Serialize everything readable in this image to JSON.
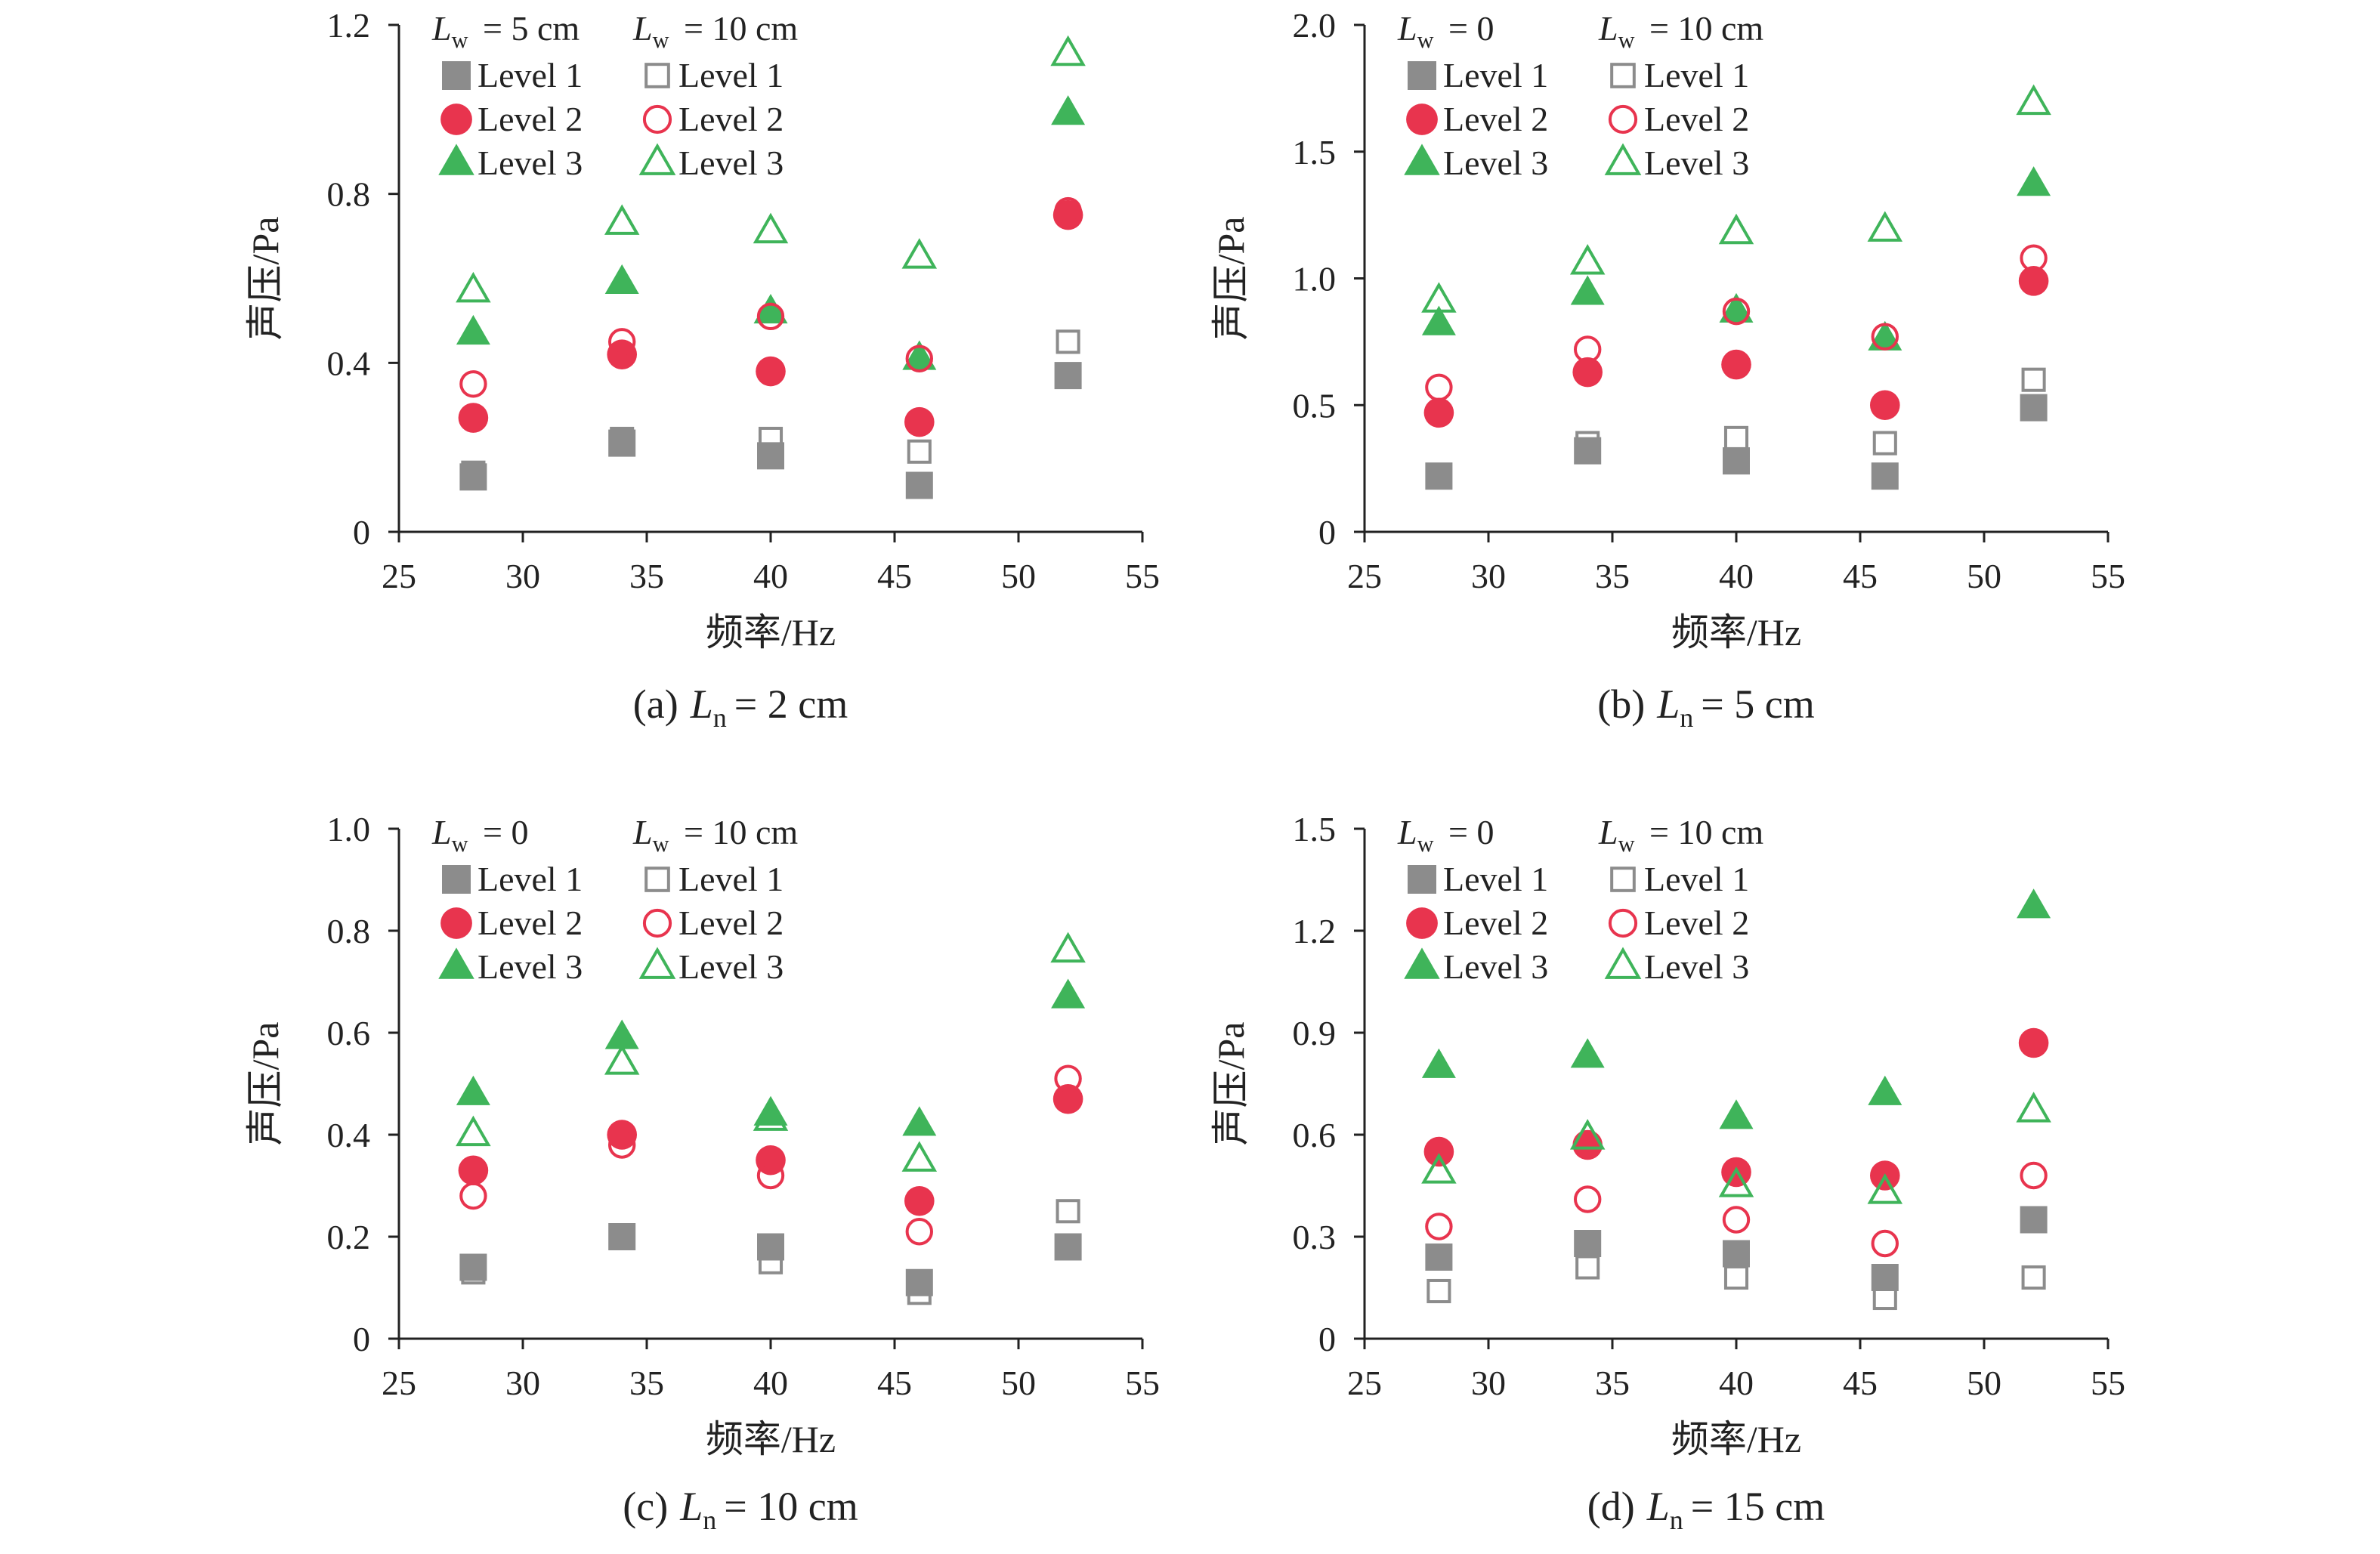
{
  "colors": {
    "level1": "#8c8c8c",
    "level1_hollow": "#8c8c8c",
    "level2": "#e8344e",
    "level3": "#3fb45a",
    "axis": "#222222"
  },
  "chart_data": [
    {
      "type": "scatter",
      "caption": "(a) L_n = 2 cm",
      "caption_parts": {
        "prefix": "(a)",
        "var": "L",
        "sub": "n",
        "rest": "= 2 cm"
      },
      "xlabel": "频率/Hz",
      "ylabel": "声压/Pa",
      "xlim": [
        25,
        55
      ],
      "xticks": [
        25,
        30,
        35,
        40,
        45,
        50,
        55
      ],
      "ylim": [
        0,
        1.2
      ],
      "yticks": [
        "0",
        "0.4",
        "0.8",
        "1.2"
      ],
      "grid": false,
      "legend_position": "top-left",
      "legend_groups": [
        {
          "var": "L",
          "sub": "w",
          "rest": "= 5 cm",
          "filled": true
        },
        {
          "var": "L",
          "sub": "w",
          "rest": "= 10 cm",
          "filled": false
        }
      ],
      "x": [
        28,
        34,
        40,
        46,
        52
      ],
      "series": [
        {
          "name": "Level 1",
          "marker": "square",
          "filled": true,
          "values": [
            0.13,
            0.21,
            0.18,
            0.11,
            0.37
          ]
        },
        {
          "name": "Level 2",
          "marker": "circle",
          "filled": true,
          "values": [
            0.27,
            0.42,
            0.38,
            0.26,
            0.75
          ]
        },
        {
          "name": "Level 3",
          "marker": "triangle",
          "filled": true,
          "values": [
            0.47,
            0.59,
            0.52,
            0.41,
            0.99
          ]
        },
        {
          "name": "Level 1",
          "marker": "square",
          "filled": false,
          "values": [
            0.14,
            0.22,
            0.22,
            0.19,
            0.45
          ]
        },
        {
          "name": "Level 2",
          "marker": "circle",
          "filled": false,
          "values": [
            0.35,
            0.45,
            0.51,
            0.41,
            0.76
          ]
        },
        {
          "name": "Level 3",
          "marker": "triangle",
          "filled": false,
          "values": [
            0.57,
            0.73,
            0.71,
            0.65,
            1.13
          ]
        }
      ]
    },
    {
      "type": "scatter",
      "caption": "(b) L_n = 5 cm",
      "caption_parts": {
        "prefix": "(b)",
        "var": "L",
        "sub": "n",
        "rest": "= 5 cm"
      },
      "xlabel": "频率/Hz",
      "ylabel": "声压/Pa",
      "xlim": [
        25,
        55
      ],
      "xticks": [
        25,
        30,
        35,
        40,
        45,
        50,
        55
      ],
      "ylim": [
        0,
        2.0
      ],
      "yticks": [
        "0",
        "0.5",
        "1.0",
        "1.5",
        "2.0"
      ],
      "grid": false,
      "legend_position": "top-left",
      "legend_groups": [
        {
          "var": "L",
          "sub": "w",
          "rest": "= 0",
          "filled": true
        },
        {
          "var": "L",
          "sub": "w",
          "rest": "= 10 cm",
          "filled": false
        }
      ],
      "x": [
        28,
        34,
        40,
        46,
        52
      ],
      "series": [
        {
          "name": "Level 1",
          "marker": "square",
          "filled": true,
          "values": [
            0.22,
            0.32,
            0.28,
            0.22,
            0.49
          ]
        },
        {
          "name": "Level 2",
          "marker": "circle",
          "filled": true,
          "values": [
            0.47,
            0.63,
            0.66,
            0.5,
            0.99
          ]
        },
        {
          "name": "Level 3",
          "marker": "triangle",
          "filled": true,
          "values": [
            0.82,
            0.94,
            0.87,
            0.76,
            1.37
          ]
        },
        {
          "name": "Level 1",
          "marker": "square",
          "filled": false,
          "values": [
            0.22,
            0.35,
            0.37,
            0.35,
            0.6
          ]
        },
        {
          "name": "Level 2",
          "marker": "circle",
          "filled": false,
          "values": [
            0.57,
            0.72,
            0.87,
            0.77,
            1.08
          ]
        },
        {
          "name": "Level 3",
          "marker": "triangle",
          "filled": false,
          "values": [
            0.91,
            1.06,
            1.18,
            1.19,
            1.69
          ]
        }
      ]
    },
    {
      "type": "scatter",
      "caption": "(c) L_n = 10 cm",
      "caption_parts": {
        "prefix": "(c)",
        "var": "L",
        "sub": "n",
        "rest": "= 10 cm"
      },
      "xlabel": "频率/Hz",
      "ylabel": "声压/Pa",
      "xlim": [
        25,
        55
      ],
      "xticks": [
        25,
        30,
        35,
        40,
        45,
        50,
        55
      ],
      "ylim": [
        0,
        1.0
      ],
      "yticks": [
        "0",
        "0.2",
        "0.4",
        "0.6",
        "0.8",
        "1.0"
      ],
      "grid": false,
      "legend_position": "top-left",
      "legend_groups": [
        {
          "var": "L",
          "sub": "w",
          "rest": "= 0",
          "filled": true
        },
        {
          "var": "L",
          "sub": "w",
          "rest": "= 10 cm",
          "filled": false
        }
      ],
      "x": [
        28,
        34,
        40,
        46,
        52
      ],
      "series": [
        {
          "name": "Level 1",
          "marker": "square",
          "filled": true,
          "values": [
            0.14,
            0.2,
            0.18,
            0.11,
            0.18
          ]
        },
        {
          "name": "Level 2",
          "marker": "circle",
          "filled": true,
          "values": [
            0.33,
            0.4,
            0.35,
            0.27,
            0.47
          ]
        },
        {
          "name": "Level 3",
          "marker": "triangle",
          "filled": true,
          "values": [
            0.48,
            0.59,
            0.44,
            0.42,
            0.67
          ]
        },
        {
          "name": "Level 1",
          "marker": "square",
          "filled": false,
          "values": [
            0.13,
            0.2,
            0.15,
            0.09,
            0.25
          ]
        },
        {
          "name": "Level 2",
          "marker": "circle",
          "filled": false,
          "values": [
            0.28,
            0.38,
            0.32,
            0.21,
            0.51
          ]
        },
        {
          "name": "Level 3",
          "marker": "triangle",
          "filled": false,
          "values": [
            0.4,
            0.54,
            0.43,
            0.35,
            0.76
          ]
        }
      ]
    },
    {
      "type": "scatter",
      "caption": "(d) L_n = 15 cm",
      "caption_parts": {
        "prefix": "(d)",
        "var": "L",
        "sub": "n",
        "rest": "= 15 cm"
      },
      "xlabel": "频率/Hz",
      "ylabel": "声压/Pa",
      "xlim": [
        25,
        55
      ],
      "xticks": [
        25,
        30,
        35,
        40,
        45,
        50,
        55
      ],
      "ylim": [
        0,
        1.5
      ],
      "yticks": [
        "0",
        "0.3",
        "0.6",
        "0.9",
        "1.2",
        "1.5"
      ],
      "grid": false,
      "legend_position": "top-left",
      "legend_groups": [
        {
          "var": "L",
          "sub": "w",
          "rest": "= 0",
          "filled": true
        },
        {
          "var": "L",
          "sub": "w",
          "rest": "= 10 cm",
          "filled": false
        }
      ],
      "x": [
        28,
        34,
        40,
        46,
        52
      ],
      "series": [
        {
          "name": "Level 1",
          "marker": "square",
          "filled": true,
          "values": [
            0.24,
            0.28,
            0.25,
            0.18,
            0.35
          ]
        },
        {
          "name": "Level 2",
          "marker": "circle",
          "filled": true,
          "values": [
            0.55,
            0.57,
            0.49,
            0.48,
            0.87
          ]
        },
        {
          "name": "Level 3",
          "marker": "triangle",
          "filled": true,
          "values": [
            0.8,
            0.83,
            0.65,
            0.72,
            1.27
          ]
        },
        {
          "name": "Level 1",
          "marker": "square",
          "filled": false,
          "values": [
            0.14,
            0.21,
            0.18,
            0.12,
            0.18
          ]
        },
        {
          "name": "Level 2",
          "marker": "circle",
          "filled": false,
          "values": [
            0.33,
            0.41,
            0.35,
            0.28,
            0.48
          ]
        },
        {
          "name": "Level 3",
          "marker": "triangle",
          "filled": false,
          "values": [
            0.49,
            0.59,
            0.45,
            0.43,
            0.67
          ]
        }
      ]
    }
  ]
}
